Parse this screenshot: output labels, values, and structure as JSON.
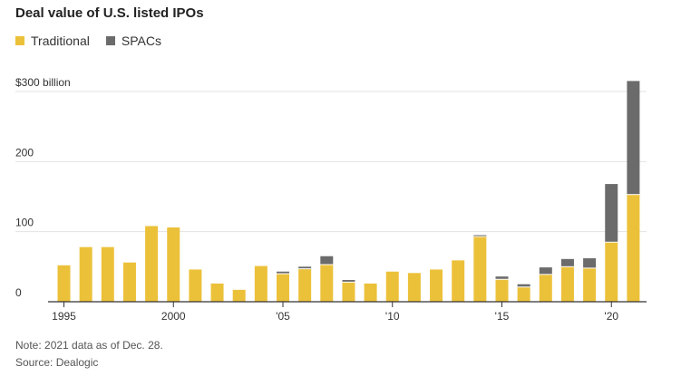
{
  "chart_data": {
    "type": "bar",
    "stacked": true,
    "title": "Deal value of U.S. listed IPOs",
    "xlabel": "",
    "ylabel": "",
    "ylim": [
      0,
      300
    ],
    "yticks": [
      {
        "value": 300,
        "label": "$300 billion"
      },
      {
        "value": 200,
        "label": "200"
      },
      {
        "value": 100,
        "label": "100"
      },
      {
        "value": 0,
        "label": "0"
      }
    ],
    "xticks": [
      {
        "value": 1995,
        "label": "1995"
      },
      {
        "value": 2000,
        "label": "2000"
      },
      {
        "value": 2005,
        "label": "'05"
      },
      {
        "value": 2010,
        "label": "'10"
      },
      {
        "value": 2015,
        "label": "'15"
      },
      {
        "value": 2020,
        "label": "'20"
      }
    ],
    "grid": true,
    "legend_position": "top-left",
    "categories": [
      1995,
      1996,
      1997,
      1998,
      1999,
      2000,
      2001,
      2002,
      2003,
      2004,
      2005,
      2006,
      2007,
      2008,
      2009,
      2010,
      2011,
      2012,
      2013,
      2014,
      2015,
      2016,
      2017,
      2018,
      2019,
      2020,
      2021
    ],
    "series": [
      {
        "name": "Traditional",
        "color": "#ecc13a",
        "values": [
          52,
          78,
          78,
          56,
          108,
          106,
          46,
          26,
          17,
          51,
          40,
          47,
          53,
          28,
          26,
          43,
          41,
          46,
          59,
          93,
          32,
          21,
          39,
          50,
          48,
          85,
          153
        ]
      },
      {
        "name": "SPACs",
        "color": "#6c6b6b",
        "values": [
          0,
          0,
          0,
          0,
          0,
          0,
          0,
          0,
          0,
          0,
          3,
          3,
          12,
          3,
          0,
          0,
          0,
          0,
          0,
          2,
          4,
          4,
          10,
          11,
          14,
          83,
          162
        ]
      }
    ]
  },
  "notes": {
    "note": "Note: 2021 data as of Dec. 28.",
    "source": "Source: Dealogic"
  },
  "colors": {
    "gridline": "#e3e3e3",
    "axis": "#333333",
    "text": "#333333"
  }
}
